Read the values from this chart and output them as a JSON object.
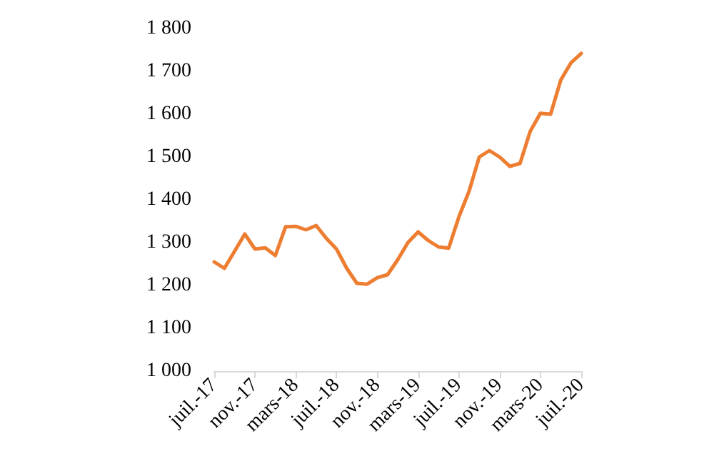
{
  "chart_data": {
    "type": "line",
    "color": "#ed7d31",
    "categories": [
      "juil.-17",
      null,
      null,
      null,
      "nov.-17",
      null,
      null,
      null,
      "mars-18",
      null,
      null,
      null,
      "juil.-18",
      null,
      null,
      null,
      "nov.-18",
      null,
      null,
      null,
      "mars-19",
      null,
      null,
      null,
      "juil.-19",
      null,
      null,
      null,
      "nov.-19",
      null,
      null,
      null,
      "mars-20",
      null,
      null,
      null,
      "juil.-20"
    ],
    "values": [
      1255,
      1240,
      1280,
      1320,
      1285,
      1288,
      1270,
      1337,
      1338,
      1330,
      1340,
      1310,
      1285,
      1240,
      1205,
      1203,
      1218,
      1225,
      1260,
      1300,
      1325,
      1305,
      1290,
      1287,
      1360,
      1420,
      1500,
      1515,
      1500,
      1478,
      1485,
      1560,
      1602,
      1600,
      1680,
      1720,
      1742
    ],
    "ylim": [
      1000,
      1800
    ],
    "yticks": [
      {
        "value": 1000,
        "label": "1 000"
      },
      {
        "value": 1100,
        "label": "1 100"
      },
      {
        "value": 1200,
        "label": "1 200"
      },
      {
        "value": 1300,
        "label": "1 300"
      },
      {
        "value": 1400,
        "label": "1 400"
      },
      {
        "value": 1500,
        "label": "1 500"
      },
      {
        "value": 1600,
        "label": "1 600"
      },
      {
        "value": 1700,
        "label": "1 700"
      },
      {
        "value": 1800,
        "label": "1 800"
      }
    ],
    "grid": false,
    "marker": "none",
    "line_style": "solid"
  }
}
